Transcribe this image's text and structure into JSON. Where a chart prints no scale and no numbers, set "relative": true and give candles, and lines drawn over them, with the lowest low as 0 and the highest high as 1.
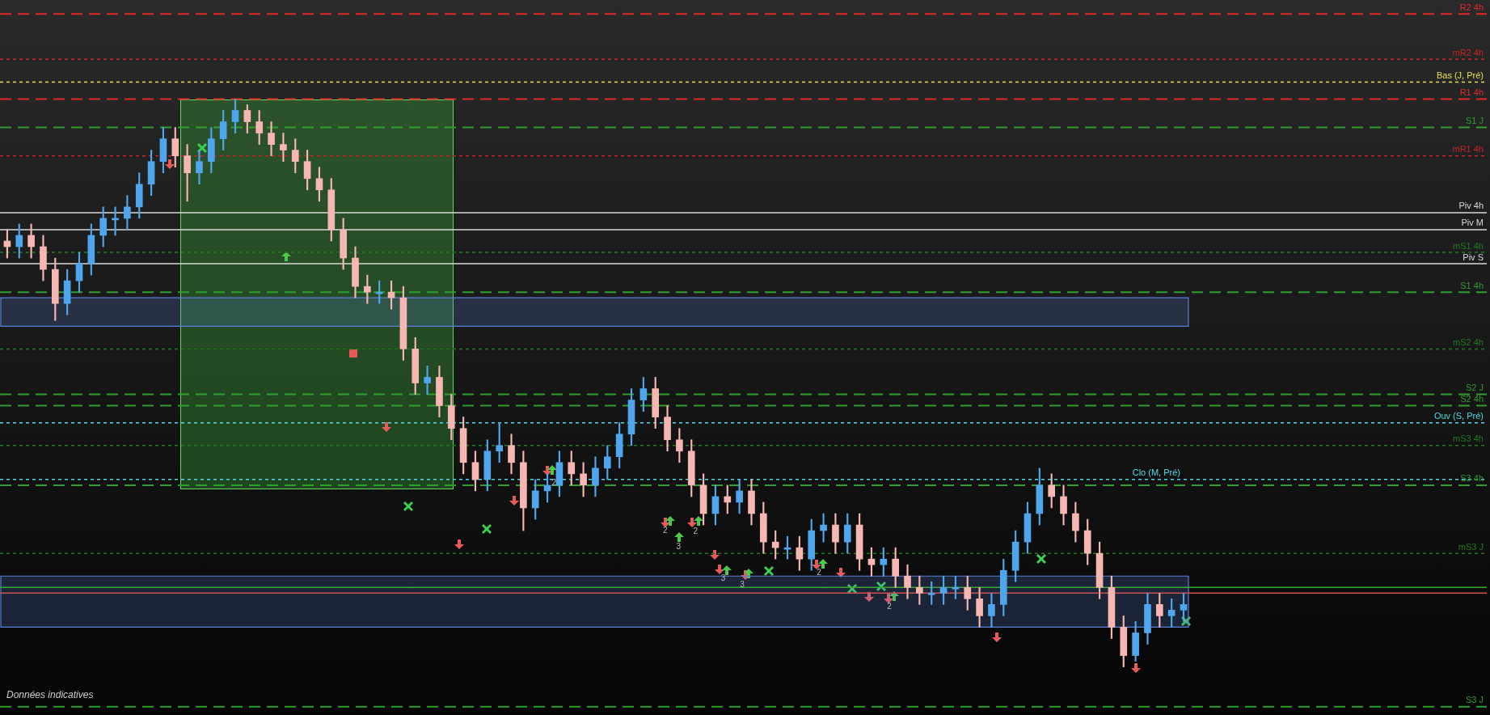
{
  "chart_data": {
    "type": "candlestick",
    "relative": true,
    "categories": [
      null,
      null,
      null,
      null,
      null,
      null,
      null,
      null,
      null,
      null,
      null,
      null,
      null,
      null,
      null,
      null,
      null,
      null,
      null,
      null,
      null,
      null,
      null,
      null,
      null,
      null,
      null,
      null,
      null,
      null,
      null,
      null,
      null,
      null,
      null,
      null,
      null,
      null,
      null,
      null,
      null,
      null,
      null,
      null,
      null,
      null,
      null,
      null,
      null,
      null,
      null,
      null,
      null,
      null,
      null,
      null,
      null,
      null,
      null,
      null,
      null,
      null,
      null,
      null,
      null,
      null,
      null,
      null,
      null,
      null,
      null,
      null,
      null,
      null,
      null,
      null,
      null,
      null,
      null,
      null,
      null,
      null,
      null,
      null,
      null,
      null,
      null,
      null,
      null,
      null,
      null,
      null,
      null,
      null,
      null,
      null,
      null,
      null,
      null
    ],
    "ohlc": [
      [
        0.75,
        0.77,
        0.72,
        0.74
      ],
      [
        0.74,
        0.78,
        0.72,
        0.76
      ],
      [
        0.76,
        0.78,
        0.72,
        0.74
      ],
      [
        0.74,
        0.76,
        0.68,
        0.7
      ],
      [
        0.7,
        0.72,
        0.61,
        0.64
      ],
      [
        0.64,
        0.7,
        0.62,
        0.68
      ],
      [
        0.68,
        0.73,
        0.66,
        0.71
      ],
      [
        0.71,
        0.78,
        0.69,
        0.76
      ],
      [
        0.76,
        0.81,
        0.74,
        0.79
      ],
      [
        0.79,
        0.81,
        0.76,
        0.79
      ],
      [
        0.79,
        0.83,
        0.77,
        0.81
      ],
      [
        0.81,
        0.87,
        0.79,
        0.85
      ],
      [
        0.85,
        0.91,
        0.83,
        0.89
      ],
      [
        0.89,
        0.95,
        0.87,
        0.93
      ],
      [
        0.93,
        0.95,
        0.88,
        0.9
      ],
      [
        0.9,
        0.92,
        0.82,
        0.87
      ],
      [
        0.87,
        0.91,
        0.85,
        0.89
      ],
      [
        0.89,
        0.95,
        0.87,
        0.93
      ],
      [
        0.93,
        0.98,
        0.91,
        0.96
      ],
      [
        0.96,
        1,
        0.94,
        0.98
      ],
      [
        0.98,
        0.99,
        0.94,
        0.96
      ],
      [
        0.96,
        0.98,
        0.92,
        0.94
      ],
      [
        0.94,
        0.96,
        0.9,
        0.92
      ],
      [
        0.92,
        0.94,
        0.89,
        0.91
      ],
      [
        0.91,
        0.93,
        0.87,
        0.89
      ],
      [
        0.89,
        0.91,
        0.84,
        0.86
      ],
      [
        0.86,
        0.88,
        0.82,
        0.84
      ],
      [
        0.84,
        0.86,
        0.75,
        0.77
      ],
      [
        0.77,
        0.79,
        0.7,
        0.72
      ],
      [
        0.72,
        0.74,
        0.65,
        0.67
      ],
      [
        0.67,
        0.69,
        0.64,
        0.66
      ],
      [
        0.66,
        0.68,
        0.64,
        0.66
      ],
      [
        0.66,
        0.68,
        0.63,
        0.65
      ],
      [
        0.65,
        0.67,
        0.54,
        0.56
      ],
      [
        0.56,
        0.58,
        0.48,
        0.5
      ],
      [
        0.5,
        0.53,
        0.48,
        0.51
      ],
      [
        0.51,
        0.53,
        0.44,
        0.46
      ],
      [
        0.46,
        0.48,
        0.4,
        0.42
      ],
      [
        0.42,
        0.44,
        0.34,
        0.36
      ],
      [
        0.36,
        0.38,
        0.31,
        0.33
      ],
      [
        0.33,
        0.4,
        0.31,
        0.38
      ],
      [
        0.38,
        0.43,
        0.36,
        0.39
      ],
      [
        0.39,
        0.41,
        0.34,
        0.36
      ],
      [
        0.36,
        0.38,
        0.24,
        0.28
      ],
      [
        0.28,
        0.33,
        0.26,
        0.31
      ],
      [
        0.31,
        0.34,
        0.29,
        0.32
      ],
      [
        0.32,
        0.38,
        0.3,
        0.36
      ],
      [
        0.36,
        0.38,
        0.32,
        0.34
      ],
      [
        0.34,
        0.36,
        0.3,
        0.32
      ],
      [
        0.32,
        0.37,
        0.3,
        0.35
      ],
      [
        0.35,
        0.39,
        0.33,
        0.37
      ],
      [
        0.37,
        0.43,
        0.35,
        0.41
      ],
      [
        0.41,
        0.49,
        0.39,
        0.47
      ],
      [
        0.47,
        0.51,
        0.45,
        0.49
      ],
      [
        0.49,
        0.51,
        0.42,
        0.44
      ],
      [
        0.44,
        0.46,
        0.38,
        0.4
      ],
      [
        0.4,
        0.42,
        0.36,
        0.38
      ],
      [
        0.38,
        0.4,
        0.3,
        0.32
      ],
      [
        0.32,
        0.34,
        0.25,
        0.27
      ],
      [
        0.27,
        0.32,
        0.25,
        0.3
      ],
      [
        0.3,
        0.32,
        0.27,
        0.29
      ],
      [
        0.29,
        0.33,
        0.27,
        0.31
      ],
      [
        0.31,
        0.33,
        0.25,
        0.27
      ],
      [
        0.27,
        0.29,
        0.2,
        0.22
      ],
      [
        0.22,
        0.24,
        0.19,
        0.21
      ],
      [
        0.21,
        0.23,
        0.19,
        0.21
      ],
      [
        0.21,
        0.23,
        0.17,
        0.19
      ],
      [
        0.19,
        0.26,
        0.17,
        0.24
      ],
      [
        0.24,
        0.27,
        0.22,
        0.25
      ],
      [
        0.25,
        0.27,
        0.2,
        0.22
      ],
      [
        0.22,
        0.27,
        0.2,
        0.25
      ],
      [
        0.25,
        0.27,
        0.17,
        0.19
      ],
      [
        0.19,
        0.21,
        0.16,
        0.18
      ],
      [
        0.18,
        0.21,
        0.16,
        0.19
      ],
      [
        0.19,
        0.21,
        0.14,
        0.16
      ],
      [
        0.16,
        0.18,
        0.12,
        0.14
      ],
      [
        0.14,
        0.16,
        0.11,
        0.13
      ],
      [
        0.13,
        0.15,
        0.11,
        0.13
      ],
      [
        0.13,
        0.16,
        0.11,
        0.14
      ],
      [
        0.14,
        0.16,
        0.12,
        0.14
      ],
      [
        0.14,
        0.16,
        0.1,
        0.12
      ],
      [
        0.12,
        0.14,
        0.07,
        0.09
      ],
      [
        0.09,
        0.13,
        0.07,
        0.11
      ],
      [
        0.11,
        0.19,
        0.09,
        0.17
      ],
      [
        0.17,
        0.24,
        0.15,
        0.22
      ],
      [
        0.22,
        0.29,
        0.2,
        0.27
      ],
      [
        0.27,
        0.35,
        0.25,
        0.32
      ],
      [
        0.32,
        0.34,
        0.28,
        0.3
      ],
      [
        0.3,
        0.32,
        0.25,
        0.27
      ],
      [
        0.27,
        0.29,
        0.22,
        0.24
      ],
      [
        0.24,
        0.26,
        0.18,
        0.2
      ],
      [
        0.2,
        0.22,
        0.12,
        0.14
      ],
      [
        0.14,
        0.16,
        0.05,
        0.07
      ],
      [
        0.07,
        0.09,
        0,
        0.02
      ],
      [
        0.02,
        0.08,
        0.01,
        0.06
      ],
      [
        0.06,
        0.13,
        0.04,
        0.11
      ],
      [
        0.11,
        0.13,
        0.07,
        0.09
      ],
      [
        0.09,
        0.12,
        0.07,
        0.1
      ],
      [
        0.1,
        0.13,
        0.08,
        0.11
      ]
    ],
    "ref_lines": [
      {
        "axis": "y",
        "value": 1.15,
        "label": "R2 4h",
        "color": "#e02a2a",
        "line_style": "dashed"
      },
      {
        "axis": "y",
        "value": 1.07,
        "label": "mR2 4h",
        "color": "#c42424",
        "line_style": "dotted"
      },
      {
        "axis": "y",
        "value": 1.03,
        "label": "Bas (J, Pré)",
        "color": "#e8e04d",
        "line_style": "dotted"
      },
      {
        "axis": "y",
        "value": 1.0,
        "label": "R1 4h",
        "color": "#e02a2a",
        "line_style": "dashed"
      },
      {
        "axis": "y",
        "value": 0.95,
        "label": "S1 J",
        "color": "#2e9e2e",
        "line_style": "dashed"
      },
      {
        "axis": "y",
        "value": 0.9,
        "label": "mR1 4h",
        "color": "#c42424",
        "line_style": "dotted"
      },
      {
        "axis": "y",
        "value": 0.8,
        "label": "Piv 4h",
        "color": "#d8d8d8",
        "line_style": "solid"
      },
      {
        "axis": "y",
        "value": 0.77,
        "label": "Piv M",
        "color": "#d8d8d8",
        "line_style": "solid"
      },
      {
        "axis": "y",
        "value": 0.73,
        "label": "mS1 4h",
        "color": "#1f7a1f",
        "line_style": "dotted"
      },
      {
        "axis": "y",
        "value": 0.71,
        "label": "Piv S",
        "color": "#d8d8d8",
        "line_style": "solid"
      },
      {
        "axis": "y",
        "value": 0.66,
        "label": "S1 4h",
        "color": "#2e9e2e",
        "line_style": "dashed"
      },
      {
        "axis": "y",
        "value": 0.56,
        "label": "mS2 4h",
        "color": "#1f7a1f",
        "line_style": "dotted"
      },
      {
        "axis": "y",
        "value": 0.48,
        "label": "S2 J",
        "color": "#2e9e2e",
        "line_style": "dashed"
      },
      {
        "axis": "y",
        "value": 0.46,
        "label": "S2 4h",
        "color": "#2e9e2e",
        "line_style": "dashed"
      },
      {
        "axis": "y",
        "value": 0.43,
        "label": "Ouv (S, Pré)",
        "color": "#4fd8e0",
        "line_style": "dotted"
      },
      {
        "axis": "y",
        "value": 0.39,
        "label": "mS3 4h",
        "color": "#1f7a1f",
        "line_style": "dotted"
      },
      {
        "axis": "y",
        "value": 0.32,
        "label": "S3 4h",
        "color": "#2e9e2e",
        "line_style": "dashed"
      },
      {
        "axis": "y",
        "value": 0.33,
        "label": "Clo (M, Pré)",
        "color": "#4fd8e0",
        "line_style": "dotted"
      },
      {
        "axis": "y",
        "value": 0.2,
        "label": "mS3 J",
        "color": "#1f7a1f",
        "line_style": "dotted"
      },
      {
        "axis": "y",
        "value": 0.14,
        "label": null,
        "color": "#3aa83a",
        "line_style": "solid"
      },
      {
        "axis": "y",
        "value": 0.13,
        "label": null,
        "color": "#c85050",
        "line_style": "solid"
      },
      {
        "axis": "y",
        "value": -0.07,
        "label": "S3 J",
        "color": "#2e9e2e",
        "line_style": "dashed"
      }
    ],
    "bands": [
      {
        "axis": "y",
        "from": 0.6,
        "to": 0.65,
        "color": "#5a7fd8"
      },
      {
        "axis": "y",
        "from": 0.07,
        "to": 0.16,
        "color": "#5a7fd8"
      }
    ],
    "annotations": [
      "Données indicatives",
      "2",
      "2",
      "3",
      "2",
      "3",
      "3",
      "2",
      "2"
    ]
  }
}
